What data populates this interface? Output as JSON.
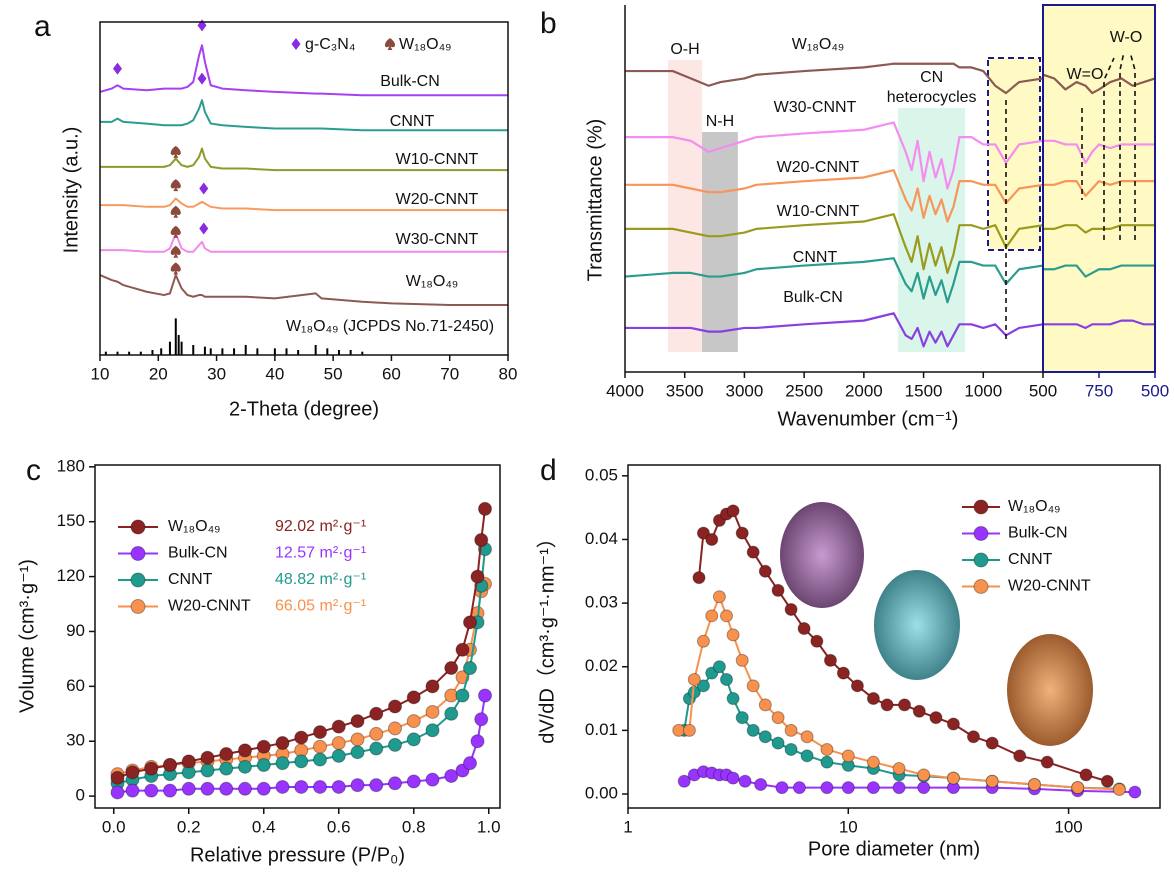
{
  "chart_data": [
    {
      "type": "line",
      "label": "a",
      "xlabel": "2-Theta (degree)",
      "ylabel": "Intensity (a.u.)",
      "xlim": [
        10,
        80
      ],
      "xticks": [
        10,
        20,
        30,
        40,
        50,
        60,
        70,
        80
      ],
      "ylim": [
        0,
        100
      ],
      "x": [
        10,
        12,
        13,
        14,
        18,
        21,
        22,
        23,
        24,
        25,
        26,
        27,
        27.5,
        28,
        29,
        31,
        35,
        40,
        47,
        48,
        55,
        60,
        70,
        80
      ],
      "series": [
        {
          "name": "Bulk-CN",
          "color": "#a640f0",
          "values": [
            79,
            80,
            81,
            80,
            79.5,
            80,
            80,
            80,
            80,
            80.5,
            82,
            90,
            93,
            88,
            81,
            80,
            79.5,
            79,
            78.5,
            78.5,
            78,
            78,
            78,
            78
          ]
        },
        {
          "name": "CNNT",
          "color": "#2a9d8f",
          "values": [
            70,
            70,
            71,
            70,
            69.5,
            69,
            69,
            69,
            69,
            69.5,
            70.5,
            74,
            76.5,
            73,
            69.5,
            69,
            68.5,
            68,
            68,
            68,
            67.5,
            67.5,
            67.5,
            67.5
          ]
        },
        {
          "name": "W10-CNNT",
          "color": "#8f9a2a",
          "values": [
            56.5,
            56.5,
            56.5,
            56.5,
            56.5,
            56.5,
            57,
            59,
            57,
            56.5,
            57,
            59.5,
            62,
            59,
            56.5,
            56,
            56,
            55.5,
            55.5,
            55.5,
            55.5,
            55.5,
            55.5,
            55.5
          ]
        },
        {
          "name": "W20-CNNT",
          "color": "#f79a5f",
          "values": [
            45,
            45,
            45,
            45,
            44.5,
            44.5,
            45,
            47,
            45.5,
            44.5,
            44.5,
            45.5,
            46,
            45.5,
            44.5,
            44,
            44,
            43.5,
            43.5,
            43.5,
            43.5,
            43.5,
            43.5,
            43.5
          ]
        },
        {
          "name": "W30-CNNT",
          "color": "#f08ce8",
          "values": [
            31.5,
            31.5,
            31.5,
            31.5,
            31,
            31,
            32,
            36.5,
            32,
            31,
            31,
            33,
            34,
            32,
            31,
            31,
            31,
            31,
            31,
            31,
            31,
            31,
            31,
            31
          ]
        },
        {
          "name": "W₁₈O₄₉",
          "color": "#8c5a52",
          "values": [
            24,
            22.5,
            22,
            21,
            19,
            18,
            18.5,
            24,
            20,
            18,
            17.5,
            18,
            18,
            17.5,
            17.5,
            17.5,
            17.5,
            17,
            18.5,
            17,
            16,
            15.5,
            15,
            15
          ]
        }
      ],
      "legend": [
        {
          "label": "g-C₃N₄",
          "marker": "diamond",
          "color": "#8a2be2"
        },
        {
          "label": "W₁₈O₄₉",
          "marker": "spade",
          "color": "#8b4a3c"
        }
      ],
      "markers": [
        {
          "x": 13,
          "y": 86,
          "kind": "diamond"
        },
        {
          "x": 27.5,
          "y": 99,
          "kind": "diamond"
        },
        {
          "x": 27.5,
          "y": 83,
          "kind": "diamond"
        },
        {
          "x": 27.8,
          "y": 50,
          "kind": "diamond"
        },
        {
          "x": 27.8,
          "y": 38,
          "kind": "diamond"
        },
        {
          "x": 23,
          "y": 61,
          "kind": "spade"
        },
        {
          "x": 23,
          "y": 51,
          "kind": "spade"
        },
        {
          "x": 23,
          "y": 43,
          "kind": "spade"
        },
        {
          "x": 23,
          "y": 37,
          "kind": "spade"
        },
        {
          "x": 23,
          "y": 31,
          "kind": "spade"
        },
        {
          "x": 23,
          "y": 26,
          "kind": "spade"
        }
      ],
      "reference": {
        "label": "W₁₈O₄₉ (JCPDS No.71-2450)",
        "color": "#000000",
        "x": [
          11,
          13,
          15,
          17,
          19,
          20.5,
          22,
          23,
          23.5,
          24,
          26,
          28,
          29,
          31,
          33,
          35,
          37,
          40,
          42,
          44,
          47,
          49,
          51,
          53,
          55
        ],
        "values": [
          1,
          1,
          1,
          1,
          1.5,
          2,
          4,
          11,
          6,
          4,
          3,
          2.5,
          2,
          2,
          2,
          3,
          2,
          2,
          2,
          1.5,
          3,
          2,
          1.5,
          1.5,
          1
        ]
      }
    },
    {
      "type": "line",
      "label": "b",
      "xlabel": "Wavenumber (cm⁻¹)",
      "ylabel": "Transmittance (%)",
      "xlim": [
        4000,
        500
      ],
      "xticks": [
        4000,
        3500,
        3000,
        2500,
        2000,
        1500,
        1000,
        500
      ],
      "ylim": [
        0,
        100
      ],
      "x": [
        4000,
        3600,
        3450,
        3300,
        3200,
        3000,
        2900,
        2500,
        2000,
        1750,
        1650,
        1600,
        1550,
        1500,
        1450,
        1400,
        1350,
        1300,
        1250,
        1200,
        1100,
        1000,
        900,
        810,
        700,
        500
      ],
      "zoom": {
        "xlim": [
          1000,
          500
        ],
        "xticks": [
          750,
          500
        ],
        "color": "#1a1a8c",
        "x": [
          1000,
          950,
          900,
          850,
          810,
          780,
          750,
          700,
          650,
          600,
          550,
          500
        ]
      },
      "series": [
        {
          "name": "W₁₈O₄₉",
          "color": "#8c5a52",
          "values": [
            82,
            82,
            80,
            78,
            79,
            80,
            81,
            82,
            83,
            84,
            84,
            84,
            84,
            84,
            84,
            84,
            84,
            84,
            84,
            83,
            83,
            82,
            78,
            76,
            79,
            80
          ],
          "zoom_values": [
            81,
            80,
            77,
            79,
            78,
            76,
            77,
            79,
            80,
            78,
            79,
            80
          ]
        },
        {
          "name": "W30-CNNT",
          "color": "#f58cf0",
          "values": [
            64,
            64,
            63,
            60,
            61,
            63,
            64,
            65,
            66,
            68,
            60,
            55,
            63,
            52,
            60,
            53,
            58,
            50,
            55,
            64,
            64,
            62,
            62,
            57,
            62,
            63
          ],
          "zoom_values": [
            63,
            63,
            62,
            62,
            57,
            60,
            62,
            61,
            62,
            62,
            62,
            62
          ]
        },
        {
          "name": "W20-CNNT",
          "color": "#f7955a",
          "values": [
            51,
            51,
            50,
            49,
            49,
            50,
            51,
            52,
            53,
            55,
            47,
            44,
            50,
            42,
            48,
            43,
            47,
            41,
            45,
            52,
            52,
            51,
            51,
            46,
            50,
            51
          ],
          "zoom_values": [
            51,
            51,
            52,
            52,
            48,
            50,
            52,
            51,
            52,
            52,
            52,
            52
          ]
        },
        {
          "name": "W10-CNNT",
          "color": "#9a9a1f",
          "values": [
            39,
            39,
            38,
            37,
            37,
            38,
            39,
            40,
            41,
            43,
            34,
            30,
            37,
            28,
            35,
            29,
            34,
            27,
            32,
            40,
            40,
            39,
            40,
            34,
            39,
            40
          ],
          "zoom_values": [
            39,
            39,
            40,
            40,
            38,
            39,
            39,
            39,
            40,
            40,
            40,
            40
          ]
        },
        {
          "name": "CNNT",
          "color": "#2a9d8f",
          "values": [
            26,
            27,
            27,
            26,
            26,
            27,
            28,
            29,
            30,
            31,
            24,
            22,
            27,
            20,
            26,
            21,
            25,
            19,
            24,
            30,
            30,
            29,
            29,
            24,
            28,
            29
          ],
          "zoom_values": [
            28,
            28,
            29,
            29,
            26,
            27,
            28,
            28,
            29,
            29,
            29,
            29
          ]
        },
        {
          "name": "Bulk-CN",
          "color": "#8a3fe0",
          "values": [
            12,
            12,
            12,
            11,
            11,
            12,
            12,
            13,
            14,
            16,
            10,
            9,
            12,
            7,
            11,
            8,
            11,
            7,
            10,
            13,
            13,
            12,
            13,
            10,
            12,
            13
          ],
          "zoom_values": [
            13,
            13,
            13,
            13,
            12,
            13,
            13,
            13,
            14,
            14,
            13,
            13
          ]
        }
      ],
      "bands": [
        {
          "label_lines": [
            "O-H"
          ],
          "range": [
            3640,
            3355
          ],
          "color": "#fde3e0"
        },
        {
          "label_lines": [
            "N-H"
          ],
          "range": [
            3355,
            3055
          ],
          "color": "#bdbdbd"
        },
        {
          "label_lines": [
            "CN",
            "heterocycles"
          ],
          "range": [
            1713,
            1152
          ],
          "color": "#d3f5e6"
        }
      ],
      "annotations": [
        "W=O",
        "W-O"
      ]
    },
    {
      "type": "line",
      "label": "c",
      "xlabel": "Relative pressure (P/P₀)",
      "ylabel": "Volume (cm³·g⁻¹)",
      "xlim": [
        -0.05,
        1.03
      ],
      "xticks": [
        {
          "value": 0,
          "label": "0.0"
        },
        0.2,
        0.4,
        0.6,
        0.8,
        {
          "value": 1,
          "label": "1.0"
        }
      ],
      "ylim": [
        -6.5,
        181
      ],
      "yticks": [
        0,
        30,
        60,
        90,
        120,
        150,
        180
      ],
      "x": [
        0.01,
        0.05,
        0.1,
        0.15,
        0.2,
        0.25,
        0.3,
        0.35,
        0.4,
        0.45,
        0.5,
        0.55,
        0.6,
        0.65,
        0.7,
        0.75,
        0.8,
        0.85,
        0.9,
        0.93,
        0.95,
        0.97,
        0.98,
        0.99
      ],
      "series": [
        {
          "name": "W₁₈O₄₉",
          "color": "#8b2323",
          "surface_area": "92.02 m²·g⁻¹",
          "values": [
            10,
            13,
            15,
            17,
            19,
            21,
            23,
            25,
            27,
            29,
            32,
            35,
            38,
            41,
            45,
            49,
            54,
            60,
            70,
            80,
            95,
            120,
            140,
            157
          ]
        },
        {
          "name": "Bulk-CN",
          "color": "#9933ff",
          "surface_area": "12.57 m²·g⁻¹",
          "values": [
            2,
            3,
            3,
            3,
            4,
            4,
            4,
            4,
            4,
            5,
            5,
            5,
            5,
            6,
            6,
            7,
            8,
            9,
            11,
            14,
            18,
            30,
            42,
            55
          ]
        },
        {
          "name": "CNNT",
          "color": "#1f9a8f",
          "surface_area": "48.82 m²·g⁻¹",
          "values": [
            7,
            9,
            11,
            12,
            13,
            14,
            15,
            16,
            17,
            18,
            19,
            20,
            22,
            24,
            26,
            28,
            31,
            36,
            45,
            55,
            70,
            95,
            115,
            135
          ]
        },
        {
          "name": "W20-CNNT",
          "color": "#f7914d",
          "surface_area": "66.05 m²·g⁻¹",
          "values": [
            12,
            14,
            16,
            17,
            18,
            19,
            20,
            21,
            22,
            23,
            25,
            27,
            29,
            31,
            34,
            37,
            41,
            46,
            55,
            65,
            80,
            100,
            112,
            116
          ]
        }
      ]
    },
    {
      "type": "line",
      "label": "d",
      "xlabel": "Pore diameter (nm)",
      "ylabel": "dV/dD（cm³·g⁻¹·nm⁻¹）",
      "xscale": "log",
      "xlim": [
        1,
        260
      ],
      "xticks": [
        1,
        10,
        100
      ],
      "ylim": [
        -0.0022,
        0.0517
      ],
      "yticks": [
        {
          "value": 0,
          "label": "0.00"
        },
        0.01,
        0.02,
        0.03,
        0.04,
        0.05
      ],
      "series": [
        {
          "name": "W₁₈O₄₉",
          "color": "#8b2323",
          "x": [
            2.1,
            2.2,
            2.4,
            2.6,
            2.8,
            3.0,
            3.3,
            3.7,
            4.2,
            4.8,
            5.5,
            6.3,
            7.2,
            8.3,
            9.5,
            11,
            13,
            15,
            18,
            21,
            25,
            30,
            37,
            45,
            60,
            80,
            120,
            150
          ],
          "values": [
            0.034,
            0.041,
            0.04,
            0.043,
            0.044,
            0.0445,
            0.041,
            0.038,
            0.035,
            0.032,
            0.029,
            0.026,
            0.024,
            0.021,
            0.019,
            0.017,
            0.015,
            0.014,
            0.014,
            0.013,
            0.012,
            0.011,
            0.009,
            0.008,
            0.006,
            0.005,
            0.003,
            0.002
          ]
        },
        {
          "name": "Bulk-CN",
          "color": "#9933ff",
          "x": [
            1.8,
            2.0,
            2.2,
            2.4,
            2.6,
            2.8,
            3.0,
            3.4,
            4,
            5,
            6,
            8,
            10,
            13,
            17,
            22,
            30,
            45,
            70,
            110,
            200
          ],
          "values": [
            0.002,
            0.003,
            0.0035,
            0.0033,
            0.003,
            0.003,
            0.0025,
            0.002,
            0.0015,
            0.001,
            0.001,
            0.001,
            0.001,
            0.001,
            0.001,
            0.001,
            0.001,
            0.001,
            0.0008,
            0.0005,
            0.0003
          ]
        },
        {
          "name": "CNNT",
          "color": "#1f9a8f",
          "x": [
            1.8,
            1.9,
            2.0,
            2.2,
            2.4,
            2.6,
            2.8,
            3.0,
            3.3,
            3.7,
            4.2,
            4.8,
            5.5,
            6.5,
            8,
            10,
            13,
            17,
            22,
            30,
            45,
            70,
            110,
            170
          ],
          "values": [
            0.01,
            0.015,
            0.016,
            0.017,
            0.019,
            0.02,
            0.018,
            0.015,
            0.012,
            0.01,
            0.009,
            0.008,
            0.007,
            0.006,
            0.005,
            0.0045,
            0.004,
            0.003,
            0.0028,
            0.0025,
            0.002,
            0.0015,
            0.001,
            0.0008
          ]
        },
        {
          "name": "W20-CNNT",
          "color": "#f7914d",
          "x": [
            1.7,
            1.9,
            2.0,
            2.2,
            2.4,
            2.6,
            2.8,
            3.0,
            3.3,
            3.7,
            4.2,
            4.8,
            5.5,
            6.5,
            8,
            10,
            13,
            17,
            22,
            30,
            45,
            70,
            110,
            170
          ],
          "values": [
            0.01,
            0.01,
            0.018,
            0.024,
            0.028,
            0.031,
            0.028,
            0.025,
            0.021,
            0.017,
            0.014,
            0.012,
            0.01,
            0.009,
            0.007,
            0.006,
            0.005,
            0.004,
            0.003,
            0.0025,
            0.002,
            0.0015,
            0.001,
            0.0007
          ]
        }
      ]
    }
  ]
}
